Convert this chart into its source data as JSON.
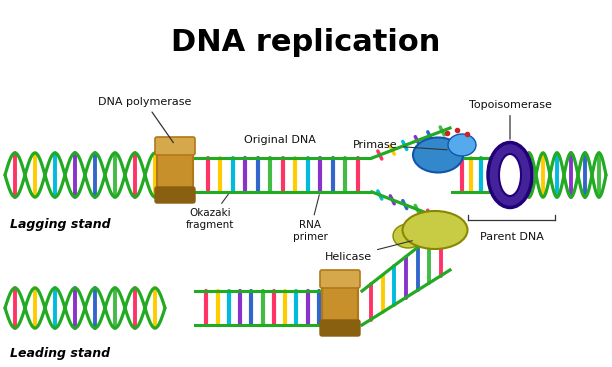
{
  "title": "DNA replication",
  "title_fontsize": 22,
  "title_fontweight": "bold",
  "labels": {
    "dna_polymerase": "DNA polymerase",
    "original_dna": "Original DNA",
    "okazaki_fragment": "Okazaki\nfragment",
    "rna_primer": "RNA\nprimer",
    "primase": "Primase",
    "helicase": "Helicase",
    "topoisomerase": "Topoisomerase",
    "parent_dna": "Parent DNA",
    "lagging_stand": "Lagging stand",
    "leading_stand": "Leading stand"
  },
  "colors": {
    "background": "#ffffff",
    "strand_green": "#22aa22",
    "strand_dark": "#116611",
    "base_pink": "#ff3366",
    "base_yellow": "#ffcc00",
    "base_cyan": "#00bbdd",
    "base_purple": "#8833cc",
    "base_blue": "#3366cc",
    "base_green2": "#44bb44",
    "polymerase_top": "#c8902a",
    "polymerase_mid": "#b07818",
    "polymerase_base": "#886010",
    "helicase_fill": "#c8cc44",
    "helicase_edge": "#888800",
    "primase_fill": "#3388cc",
    "primase_light": "#55aaee",
    "primase_dots": "#cc2222",
    "topo_fill": "#442299",
    "topo_edge": "#220077",
    "annot_line": "#333333",
    "label_color": "#111111"
  }
}
